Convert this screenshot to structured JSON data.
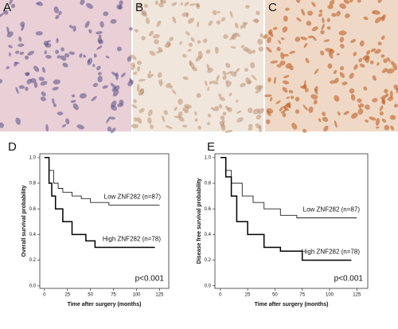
{
  "panels": [
    {
      "label": "A"
    },
    {
      "label": "B"
    },
    {
      "label": "C"
    }
  ],
  "chart_data": [
    {
      "type": "step",
      "label": "D",
      "ylabel": "Overall survival probability",
      "xlabel": "Time after surgery (months)",
      "annotation": "p<0.001",
      "xlim": [
        -5,
        135
      ],
      "ylim": [
        -0.02,
        1.03
      ],
      "xticks": [
        0,
        25,
        50,
        75,
        100,
        125
      ],
      "yticks": [
        {
          "value": 0,
          "label": "0.0"
        },
        0.2,
        0.4,
        0.6,
        0.8,
        {
          "value": 1,
          "label": "1.0"
        }
      ],
      "series": [
        {
          "name": "Low ZNF282 (n=87)",
          "color": "#222222",
          "x": [
            0,
            5,
            10,
            15,
            20,
            30,
            40,
            50,
            70,
            125
          ],
          "values": [
            1,
            0.9,
            0.8,
            0.76,
            0.73,
            0.7,
            0.68,
            0.65,
            0.63,
            0.63
          ]
        },
        {
          "name": "High ZNF282 (n=78)",
          "color": "#000000",
          "x": [
            0,
            5,
            8,
            12,
            20,
            30,
            45,
            55,
            120
          ],
          "values": [
            1,
            0.8,
            0.7,
            0.6,
            0.5,
            0.4,
            0.35,
            0.3,
            0.3
          ]
        }
      ]
    },
    {
      "type": "step",
      "label": "E",
      "ylabel": "Disease free survival probability",
      "xlabel": "Time after surgery (months)",
      "annotation": "p<0.001",
      "xlim": [
        -5,
        135
      ],
      "ylim": [
        -0.02,
        1.03
      ],
      "xticks": [
        0,
        25,
        50,
        75,
        100,
        125
      ],
      "yticks": [
        {
          "value": 0,
          "label": "0.0"
        },
        0.2,
        0.4,
        0.6,
        0.8,
        {
          "value": 1,
          "label": "1.0"
        }
      ],
      "series": [
        {
          "name": "Low ZNF282 (n=87)",
          "color": "#222222",
          "x": [
            0,
            5,
            10,
            20,
            30,
            40,
            55,
            70,
            125
          ],
          "values": [
            1,
            0.9,
            0.8,
            0.7,
            0.65,
            0.6,
            0.55,
            0.53,
            0.53
          ]
        },
        {
          "name": "High ZNF282 (n=78)",
          "color": "#000000",
          "x": [
            0,
            5,
            10,
            15,
            25,
            40,
            55,
            75,
            120
          ],
          "values": [
            1,
            0.85,
            0.7,
            0.5,
            0.4,
            0.3,
            0.27,
            0.2,
            0.2
          ]
        }
      ]
    }
  ]
}
